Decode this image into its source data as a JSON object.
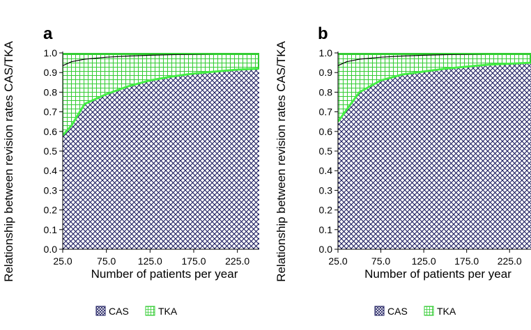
{
  "chart_data": [
    {
      "type": "area",
      "panel_label": "a",
      "xlabel": "Number of patients per year",
      "ylabel": "Relationship between revision rates CAS/TKA",
      "xlim": [
        25,
        250
      ],
      "ylim": [
        0,
        1
      ],
      "x_ticks": [
        "25.0",
        "75.0",
        "125.0",
        "175.0",
        "225.0"
      ],
      "y_ticks": [
        "0.0",
        "0.1",
        "0.2",
        "0.3",
        "0.4",
        "0.5",
        "0.6",
        "0.7",
        "0.8",
        "0.9",
        "1.0"
      ],
      "legend": [
        {
          "label": "CAS",
          "pattern": "crosshatch"
        },
        {
          "label": "TKA",
          "pattern": "grid"
        }
      ],
      "legend_position": "bottom",
      "grid": false,
      "colors": {
        "cas_hatch": "#1a1a5e",
        "tka_grid": "#33cc33",
        "cas_line": "#44ee44",
        "upper_line": "#000000"
      },
      "series": [
        {
          "name": "CAS",
          "x": [
            25,
            35,
            50,
            75,
            100,
            125,
            150,
            175,
            200,
            225,
            250
          ],
          "values": [
            0.58,
            0.63,
            0.74,
            0.79,
            0.83,
            0.86,
            0.88,
            0.895,
            0.905,
            0.915,
            0.92
          ]
        },
        {
          "name": "TKA",
          "x": [
            25,
            35,
            50,
            75,
            100,
            125,
            150,
            175,
            200,
            225,
            250
          ],
          "values": [
            0.935,
            0.955,
            0.968,
            0.978,
            0.984,
            0.988,
            0.991,
            0.993,
            0.995,
            0.997,
            0.998
          ]
        }
      ]
    },
    {
      "type": "area",
      "panel_label": "b",
      "xlabel": "Number of patients per year",
      "ylabel": "Relationship between revision rates CAS/TKA",
      "xlim": [
        25,
        250
      ],
      "ylim": [
        0,
        1
      ],
      "x_ticks": [
        "25.0",
        "75.0",
        "125.0",
        "175.0",
        "225.0"
      ],
      "y_ticks": [
        "0.0",
        "0.1",
        "0.2",
        "0.3",
        "0.4",
        "0.5",
        "0.6",
        "0.7",
        "0.8",
        "0.9",
        "1.0"
      ],
      "legend": [
        {
          "label": "CAS",
          "pattern": "crosshatch"
        },
        {
          "label": "TKA",
          "pattern": "grid"
        }
      ],
      "legend_position": "bottom",
      "grid": false,
      "colors": {
        "cas_hatch": "#1a1a5e",
        "tka_grid": "#33cc33",
        "cas_line": "#44ee44",
        "upper_line": "#000000"
      },
      "series": [
        {
          "name": "CAS",
          "x": [
            25,
            35,
            50,
            75,
            100,
            125,
            150,
            175,
            200,
            225,
            250
          ],
          "values": [
            0.65,
            0.71,
            0.8,
            0.86,
            0.89,
            0.905,
            0.92,
            0.93,
            0.94,
            0.945,
            0.95
          ]
        },
        {
          "name": "TKA",
          "x": [
            25,
            35,
            50,
            75,
            100,
            125,
            150,
            175,
            200,
            225,
            250
          ],
          "values": [
            0.935,
            0.955,
            0.968,
            0.978,
            0.984,
            0.988,
            0.991,
            0.993,
            0.995,
            0.997,
            0.998
          ]
        }
      ]
    }
  ]
}
